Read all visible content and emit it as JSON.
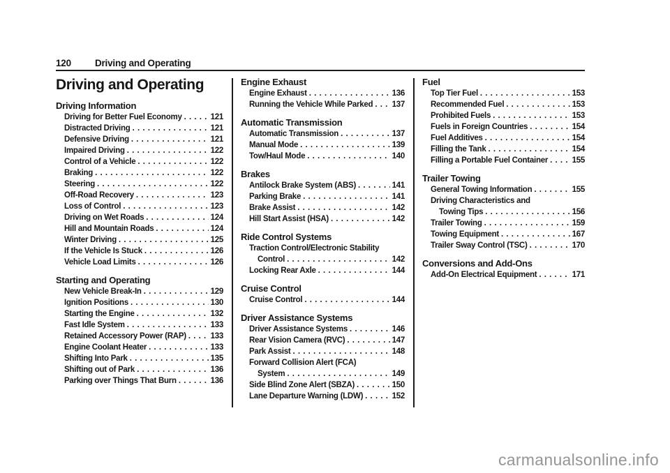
{
  "header": {
    "page_number": "120",
    "chapter": "Driving and Operating"
  },
  "title": "Driving and Operating",
  "columns": [
    {
      "sections": [
        {
          "heading": "Driving Information",
          "entries": [
            {
              "lines": [
                "Driving for Better Fuel Economy"
              ],
              "page": "121"
            },
            {
              "lines": [
                "Distracted Driving"
              ],
              "page": "121"
            },
            {
              "lines": [
                "Defensive Driving"
              ],
              "page": "121"
            },
            {
              "lines": [
                "Impaired Driving"
              ],
              "page": "122"
            },
            {
              "lines": [
                "Control of a Vehicle"
              ],
              "page": "122"
            },
            {
              "lines": [
                "Braking"
              ],
              "page": "122"
            },
            {
              "lines": [
                "Steering"
              ],
              "page": "122"
            },
            {
              "lines": [
                "Off-Road Recovery"
              ],
              "page": "123"
            },
            {
              "lines": [
                "Loss of Control"
              ],
              "page": "123"
            },
            {
              "lines": [
                "Driving on Wet Roads"
              ],
              "page": "124"
            },
            {
              "lines": [
                "Hill and Mountain Roads"
              ],
              "page": "124"
            },
            {
              "lines": [
                "Winter Driving"
              ],
              "page": "125"
            },
            {
              "lines": [
                "If the Vehicle Is Stuck"
              ],
              "page": "126"
            },
            {
              "lines": [
                "Vehicle Load Limits"
              ],
              "page": "126"
            }
          ]
        },
        {
          "heading": "Starting and Operating",
          "entries": [
            {
              "lines": [
                "New Vehicle Break-In"
              ],
              "page": "129"
            },
            {
              "lines": [
                "Ignition Positions"
              ],
              "page": "130"
            },
            {
              "lines": [
                "Starting the Engine"
              ],
              "page": "132"
            },
            {
              "lines": [
                "Fast Idle System"
              ],
              "page": "133"
            },
            {
              "lines": [
                "Retained Accessory Power (RAP)"
              ],
              "page": "133"
            },
            {
              "lines": [
                "Engine Coolant Heater"
              ],
              "page": "133"
            },
            {
              "lines": [
                "Shifting Into Park"
              ],
              "page": "135"
            },
            {
              "lines": [
                "Shifting out of Park"
              ],
              "page": "136"
            },
            {
              "lines": [
                "Parking over Things That Burn"
              ],
              "page": "136"
            }
          ]
        }
      ]
    },
    {
      "sections": [
        {
          "heading": "Engine Exhaust",
          "entries": [
            {
              "lines": [
                "Engine Exhaust"
              ],
              "page": "136"
            },
            {
              "lines": [
                "Running the Vehicle While Parked"
              ],
              "page": "137"
            }
          ]
        },
        {
          "heading": "Automatic Transmission",
          "entries": [
            {
              "lines": [
                "Automatic Transmission"
              ],
              "page": "137"
            },
            {
              "lines": [
                "Manual Mode"
              ],
              "page": "139"
            },
            {
              "lines": [
                "Tow/Haul Mode"
              ],
              "page": "140"
            }
          ]
        },
        {
          "heading": "Brakes",
          "entries": [
            {
              "lines": [
                "Antilock Brake System (ABS)"
              ],
              "page": "141"
            },
            {
              "lines": [
                "Parking Brake"
              ],
              "page": "141"
            },
            {
              "lines": [
                "Brake Assist"
              ],
              "page": "142"
            },
            {
              "lines": [
                "Hill Start Assist (HSA)"
              ],
              "page": "142"
            }
          ]
        },
        {
          "heading": "Ride Control Systems",
          "entries": [
            {
              "lines": [
                "Traction Control/Electronic Stability",
                "Control"
              ],
              "page": "142"
            },
            {
              "lines": [
                "Locking Rear Axle"
              ],
              "page": "144"
            }
          ]
        },
        {
          "heading": "Cruise Control",
          "entries": [
            {
              "lines": [
                "Cruise Control"
              ],
              "page": "144"
            }
          ]
        },
        {
          "heading": "Driver Assistance Systems",
          "entries": [
            {
              "lines": [
                "Driver Assistance Systems"
              ],
              "page": "146"
            },
            {
              "lines": [
                "Rear Vision Camera (RVC)"
              ],
              "page": "147"
            },
            {
              "lines": [
                "Park Assist"
              ],
              "page": "148"
            },
            {
              "lines": [
                "Forward Collision Alert (FCA)",
                "System"
              ],
              "page": "149"
            },
            {
              "lines": [
                "Side Blind Zone Alert (SBZA)"
              ],
              "page": "150"
            },
            {
              "lines": [
                "Lane Departure Warning (LDW)"
              ],
              "page": "152"
            }
          ]
        }
      ]
    },
    {
      "sections": [
        {
          "heading": "Fuel",
          "entries": [
            {
              "lines": [
                "Top Tier Fuel"
              ],
              "page": "153"
            },
            {
              "lines": [
                "Recommended Fuel"
              ],
              "page": "153"
            },
            {
              "lines": [
                "Prohibited Fuels"
              ],
              "page": "153"
            },
            {
              "lines": [
                "Fuels in Foreign Countries"
              ],
              "page": "154"
            },
            {
              "lines": [
                "Fuel Additives"
              ],
              "page": "154"
            },
            {
              "lines": [
                "Filling the Tank"
              ],
              "page": "154"
            },
            {
              "lines": [
                "Filling a Portable Fuel Container"
              ],
              "page": "155"
            }
          ]
        },
        {
          "heading": "Trailer Towing",
          "entries": [
            {
              "lines": [
                "General Towing Information"
              ],
              "page": "155"
            },
            {
              "lines": [
                "Driving Characteristics and",
                "Towing Tips"
              ],
              "page": "156"
            },
            {
              "lines": [
                "Trailer Towing"
              ],
              "page": "159"
            },
            {
              "lines": [
                "Towing Equipment"
              ],
              "page": "167"
            },
            {
              "lines": [
                "Trailer Sway Control (TSC)"
              ],
              "page": "170"
            }
          ]
        },
        {
          "heading": "Conversions and Add-Ons",
          "entries": [
            {
              "lines": [
                "Add-On Electrical Equipment"
              ],
              "page": "171"
            }
          ]
        }
      ]
    }
  ],
  "watermark": "carmanualsonline.info",
  "colors": {
    "text": "#161616",
    "rule": "#1c1c1c",
    "watermark": "#959595"
  }
}
